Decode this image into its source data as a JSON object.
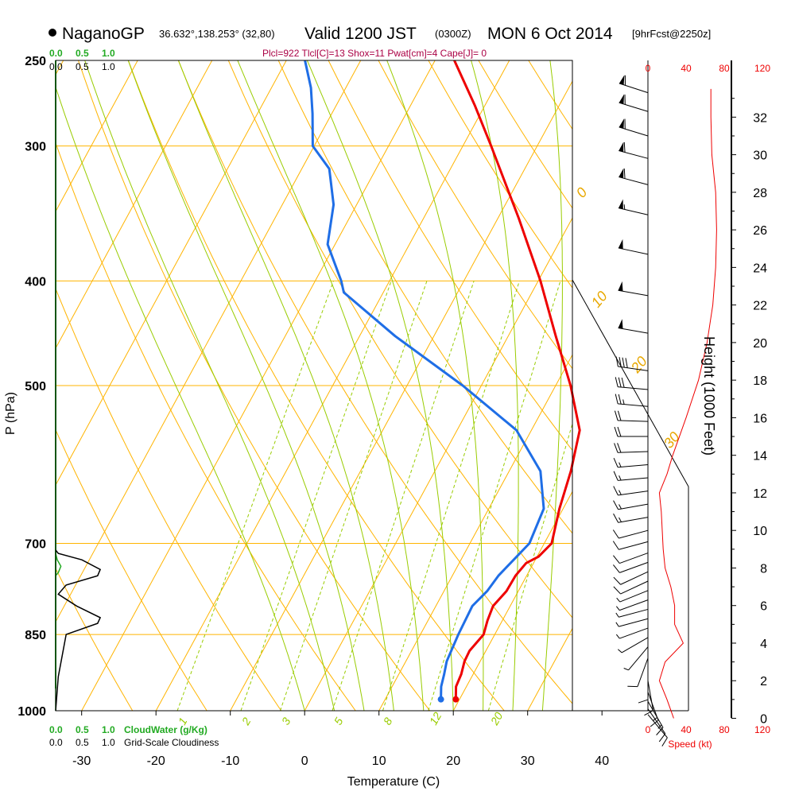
{
  "header": {
    "station": "NaganoGP",
    "coords": "36.632°,138.253° (32,80)",
    "valid": "Valid 1200 JST",
    "zulu": "(0300Z)",
    "date": "MON 6 Oct 2014",
    "forecast": "[9hrFcst@2250z]",
    "indices": "Plcl=922 Tlcl[C]=13 Shox=11 Pwat[cm]=4 Cape[J]= 0"
  },
  "colors": {
    "isotherm": "#ffb400",
    "mixing": "#99cc00",
    "temperature": "#ee0000",
    "dewpoint": "#1f6ee6",
    "cloud_water": "#22aa22",
    "speed": "#ee0000",
    "barb": "#000000"
  },
  "chart_data": {
    "type": "line",
    "xlabel": "Temperature (C)",
    "ylabel": "P (hPa)",
    "y2label": "Height (1000 Feet)",
    "xlim": [
      -35,
      45
    ],
    "ylim_hpa": [
      1000,
      250
    ],
    "x_ticks": [
      "-30",
      "-20",
      "-10",
      "0",
      "10",
      "20",
      "30",
      "40"
    ],
    "p_ticks": [
      "250",
      "300",
      "400",
      "500",
      "700",
      "850",
      "1000"
    ],
    "height_ticks": [
      "0",
      "2",
      "4",
      "6",
      "8",
      "10",
      "12",
      "14",
      "16",
      "18",
      "20",
      "22",
      "24",
      "26",
      "28",
      "30",
      "32"
    ],
    "skewed_isotherm_labels": [
      "10",
      "0",
      "-10",
      "-20",
      "-30"
    ],
    "dry_adiabat_labels": [
      "0",
      "10",
      "20",
      "30"
    ],
    "mixing_ratio_labels": [
      "1",
      "2",
      "3",
      "5",
      "8",
      "12",
      "20"
    ],
    "series": [
      {
        "name": "temperature",
        "points": [
          [
            976,
            19.5
          ],
          [
            950,
            18.6
          ],
          [
            925,
            18.4
          ],
          [
            900,
            17.9
          ],
          [
            880,
            17.8
          ],
          [
            850,
            18.5
          ],
          [
            825,
            18.0
          ],
          [
            800,
            17.7
          ],
          [
            775,
            18.4
          ],
          [
            750,
            18.5
          ],
          [
            730,
            19.0
          ],
          [
            720,
            20.2
          ],
          [
            700,
            21.0
          ],
          [
            650,
            19.5
          ],
          [
            600,
            18.3
          ],
          [
            550,
            16.5
          ],
          [
            500,
            12.0
          ],
          [
            450,
            6.4
          ],
          [
            400,
            0.3
          ],
          [
            350,
            -7.2
          ],
          [
            300,
            -16.2
          ],
          [
            275,
            -21.4
          ],
          [
            250,
            -27.4
          ]
        ]
      },
      {
        "name": "dewpoint",
        "points": [
          [
            976,
            17.5
          ],
          [
            950,
            16.6
          ],
          [
            925,
            16.1
          ],
          [
            900,
            15.5
          ],
          [
            850,
            15.1
          ],
          [
            800,
            14.9
          ],
          [
            775,
            15.8
          ],
          [
            750,
            16.2
          ],
          [
            730,
            16.9
          ],
          [
            700,
            18.0
          ],
          [
            650,
            17.4
          ],
          [
            600,
            14.2
          ],
          [
            550,
            8.0
          ],
          [
            500,
            -2.5
          ],
          [
            450,
            -15.2
          ],
          [
            410,
            -25.3
          ],
          [
            400,
            -26.5
          ],
          [
            370,
            -31.0
          ],
          [
            340,
            -33.1
          ],
          [
            315,
            -36.3
          ],
          [
            300,
            -40.2
          ],
          [
            280,
            -42.6
          ],
          [
            265,
            -44.7
          ],
          [
            250,
            -47.5
          ]
        ]
      }
    ],
    "wind_speed_axis": {
      "ticks": [
        "0",
        "40",
        "80",
        "120"
      ],
      "label": "Speed (kt)",
      "profile": [
        [
          0,
          27
        ],
        [
          1,
          20
        ],
        [
          2,
          12
        ],
        [
          3,
          18
        ],
        [
          4,
          37
        ],
        [
          5,
          28
        ],
        [
          6,
          28
        ],
        [
          7,
          24
        ],
        [
          8,
          18
        ],
        [
          9,
          16
        ],
        [
          10,
          15
        ],
        [
          11,
          14
        ],
        [
          12,
          12
        ],
        [
          13,
          20
        ],
        [
          14,
          26
        ],
        [
          16,
          40
        ],
        [
          18,
          53
        ],
        [
          20,
          62
        ],
        [
          22,
          68
        ],
        [
          24,
          71
        ],
        [
          26,
          72
        ],
        [
          28,
          71
        ],
        [
          30,
          67
        ],
        [
          32,
          66
        ],
        [
          33.5,
          66
        ]
      ]
    },
    "wind_barbs": [
      {
        "h": 0.2,
        "spd": 10,
        "dir": 140
      },
      {
        "h": 0.5,
        "spd": 12,
        "dir": 145
      },
      {
        "h": 0.9,
        "spd": 14,
        "dir": 150
      },
      {
        "h": 1.4,
        "spd": 15,
        "dir": 160
      },
      {
        "h": 2.0,
        "spd": 12,
        "dir": 170
      },
      {
        "h": 2.6,
        "spd": 10,
        "dir": 180
      },
      {
        "h": 3.2,
        "spd": 8,
        "dir": 200
      },
      {
        "h": 3.8,
        "spd": 6,
        "dir": 220
      },
      {
        "h": 4.3,
        "spd": 5,
        "dir": 240
      },
      {
        "h": 4.8,
        "spd": 5,
        "dir": 250
      },
      {
        "h": 5.3,
        "spd": 5,
        "dir": 255
      },
      {
        "h": 5.8,
        "spd": 6,
        "dir": 255
      },
      {
        "h": 6.3,
        "spd": 6,
        "dir": 250
      },
      {
        "h": 6.8,
        "spd": 7,
        "dir": 248
      },
      {
        "h": 7.3,
        "spd": 8,
        "dir": 245
      },
      {
        "h": 7.8,
        "spd": 9,
        "dir": 245
      },
      {
        "h": 8.3,
        "spd": 10,
        "dir": 250
      },
      {
        "h": 8.8,
        "spd": 10,
        "dir": 250
      },
      {
        "h": 9.4,
        "spd": 11,
        "dir": 255
      },
      {
        "h": 10.0,
        "spd": 12,
        "dir": 255
      },
      {
        "h": 10.7,
        "spd": 13,
        "dir": 260
      },
      {
        "h": 11.4,
        "spd": 14,
        "dir": 260
      },
      {
        "h": 12.1,
        "spd": 14,
        "dir": 262
      },
      {
        "h": 12.8,
        "spd": 15,
        "dir": 265
      },
      {
        "h": 13.5,
        "spd": 16,
        "dir": 265
      },
      {
        "h": 14.2,
        "spd": 18,
        "dir": 268
      },
      {
        "h": 15.0,
        "spd": 20,
        "dir": 270
      },
      {
        "h": 15.8,
        "spd": 22,
        "dir": 272
      },
      {
        "h": 16.6,
        "spd": 24,
        "dir": 275
      },
      {
        "h": 17.5,
        "spd": 30,
        "dir": 275
      },
      {
        "h": 18.5,
        "spd": 40,
        "dir": 278
      },
      {
        "h": 20.5,
        "spd": 48,
        "dir": 280
      },
      {
        "h": 22.5,
        "spd": 50,
        "dir": 280
      },
      {
        "h": 24.7,
        "spd": 52,
        "dir": 282
      },
      {
        "h": 26.8,
        "spd": 55,
        "dir": 283
      },
      {
        "h": 28.4,
        "spd": 58,
        "dir": 285
      },
      {
        "h": 29.8,
        "spd": 60,
        "dir": 285
      },
      {
        "h": 31.0,
        "spd": 60,
        "dir": 287
      },
      {
        "h": 32.3,
        "spd": 60,
        "dir": 287
      },
      {
        "h": 33.3,
        "spd": 60,
        "dir": 288
      }
    ],
    "cloud_panel": {
      "axis_top_labels": [
        "0.0",
        "0.5",
        "1.0"
      ],
      "axis_bottom_labels": [
        "0.0",
        "0.5",
        "1.0"
      ],
      "cloud_water_label": "CloudWater (g/Kg)",
      "cloudiness_label": "Grid-Scale Cloudiness",
      "cloudiness": [
        [
          1000,
          0
        ],
        [
          930,
          0.05
        ],
        [
          850,
          0.2
        ],
        [
          830,
          0.8
        ],
        [
          820,
          0.85
        ],
        [
          800,
          0.4
        ],
        [
          780,
          0.05
        ],
        [
          765,
          0.2
        ],
        [
          750,
          0.8
        ],
        [
          740,
          0.85
        ],
        [
          725,
          0.5
        ],
        [
          715,
          0.05
        ],
        [
          710,
          0
        ]
      ],
      "cloud_water": [
        [
          1000,
          0
        ],
        [
          750,
          0
        ],
        [
          745,
          0.05
        ],
        [
          735,
          0.1
        ],
        [
          725,
          0.03
        ],
        [
          715,
          0
        ]
      ]
    }
  }
}
